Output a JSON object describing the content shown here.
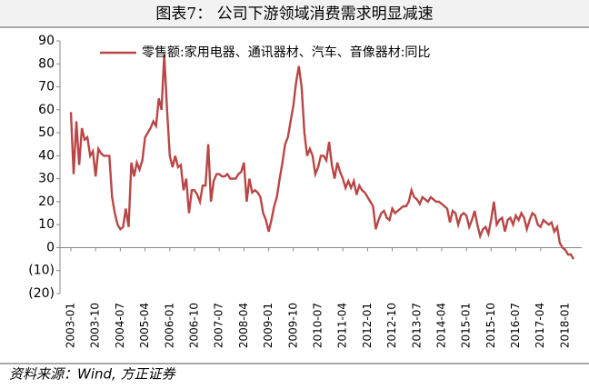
{
  "chart_data": {
    "type": "line",
    "title": "图表7：  公司下游领域消费需求明显减速",
    "source": "资料来源：Wind, 方正证券",
    "categories": [
      "2003-01",
      null,
      null,
      null,
      null,
      null,
      null,
      null,
      null,
      "2003-10",
      null,
      null,
      null,
      null,
      null,
      null,
      null,
      null,
      "2004-07",
      null,
      null,
      null,
      null,
      null,
      null,
      null,
      null,
      "2005-04",
      null,
      null,
      null,
      null,
      null,
      null,
      null,
      null,
      "2006-01",
      null,
      null,
      null,
      null,
      null,
      null,
      null,
      null,
      "2006-10",
      null,
      null,
      null,
      null,
      null,
      null,
      null,
      null,
      "2007-07",
      null,
      null,
      null,
      null,
      null,
      null,
      null,
      null,
      "2008-04",
      null,
      null,
      null,
      null,
      null,
      null,
      null,
      null,
      "2009-01",
      null,
      null,
      null,
      null,
      null,
      null,
      null,
      null,
      "2009-10",
      null,
      null,
      null,
      null,
      null,
      null,
      null,
      null,
      "2010-07",
      null,
      null,
      null,
      null,
      null,
      null,
      null,
      null,
      "2011-04",
      null,
      null,
      null,
      null,
      null,
      null,
      null,
      null,
      "2012-01",
      null,
      null,
      null,
      null,
      null,
      null,
      null,
      null,
      "2012-10",
      null,
      null,
      null,
      null,
      null,
      null,
      null,
      null,
      "2013-07",
      null,
      null,
      null,
      null,
      null,
      null,
      null,
      null,
      "2014-04",
      null,
      null,
      null,
      null,
      null,
      null,
      null,
      null,
      "2015-01",
      null,
      null,
      null,
      null,
      null,
      null,
      null,
      null,
      "2015-10",
      null,
      null,
      null,
      null,
      null,
      null,
      null,
      null,
      "2016-07",
      null,
      null,
      null,
      null,
      null,
      null,
      null,
      null,
      "2017-04",
      null,
      null,
      null,
      null,
      null,
      null,
      null,
      null,
      "2018-01",
      null,
      null,
      null
    ],
    "series": [
      {
        "name": "零售额:家用电器、通讯器材、汽车、音像器材:同比",
        "color": "#b94646",
        "values": [
          59,
          32,
          55,
          36,
          52,
          47,
          48,
          40,
          42,
          31,
          43,
          41,
          40,
          40,
          40,
          22,
          15,
          10,
          8,
          9,
          17,
          9,
          37,
          31,
          37,
          34,
          38,
          48,
          50,
          52,
          55,
          53,
          65,
          60,
          84,
          60,
          40,
          35,
          40,
          35,
          36,
          25,
          30,
          15,
          25,
          25,
          23,
          20,
          27,
          27,
          45,
          20,
          29,
          32,
          32,
          31,
          31,
          32,
          30,
          30,
          30,
          32,
          33,
          37,
          20,
          30,
          24,
          25,
          24,
          22,
          15,
          12,
          7,
          12,
          18,
          22,
          30,
          37,
          45,
          48,
          55,
          62,
          72,
          79,
          70,
          50,
          40,
          43,
          40,
          32,
          35,
          40,
          40,
          38,
          46,
          36,
          30,
          37,
          33,
          30,
          26,
          29,
          26,
          29,
          23,
          27,
          25,
          24,
          22,
          20,
          18,
          8,
          12,
          15,
          16,
          13,
          12,
          17,
          15,
          16,
          17,
          18,
          18,
          20,
          25,
          22,
          21,
          19,
          22,
          21,
          20,
          22,
          21,
          20,
          20,
          19,
          18,
          17,
          11,
          16,
          15,
          10,
          14,
          15,
          14,
          9,
          12,
          16,
          10,
          5,
          8,
          9,
          6,
          12,
          20,
          10,
          12,
          13,
          7,
          12,
          13,
          10,
          14,
          12,
          15,
          13,
          8,
          12,
          15,
          14,
          10,
          9,
          12,
          11,
          10,
          11,
          7,
          9,
          2,
          0,
          -1,
          -3,
          -3,
          -5
        ]
      }
    ],
    "ylim": [
      -20,
      90
    ],
    "yticks": [
      {
        "value": -20,
        "label": "(20)"
      },
      {
        "value": -10,
        "label": "(10)"
      },
      0,
      10,
      20,
      30,
      40,
      50,
      60,
      70,
      80,
      90
    ],
    "legend": "top"
  }
}
